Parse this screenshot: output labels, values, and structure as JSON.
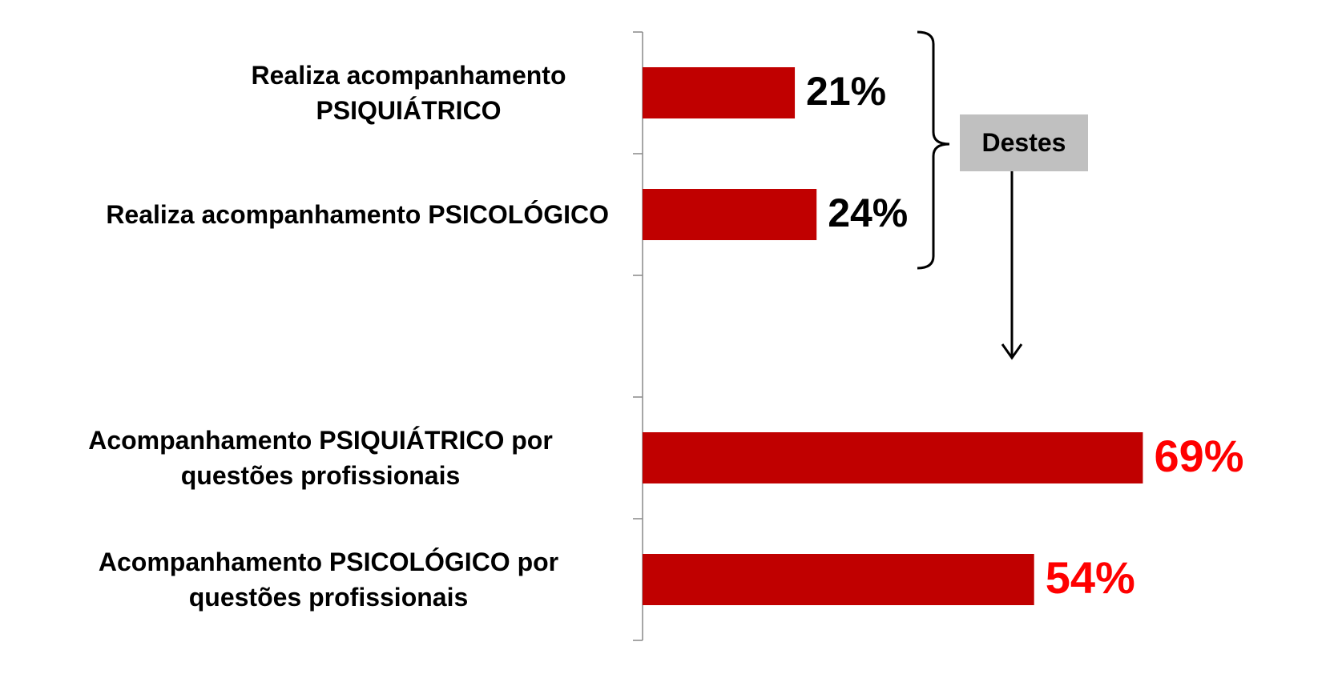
{
  "chart_data": {
    "type": "barh",
    "categories": [
      "Realiza acompanhamento PSIQUIÁTRICO",
      "Realiza acompanhamento PSICOLÓGICO",
      null,
      "Acompanhamento PSIQUIÁTRICO por questões profissionais",
      "Acompanhamento PSICOLÓGICO por questões profissionais"
    ],
    "values": [
      21,
      24,
      null,
      69,
      54
    ],
    "value_labels": [
      "21%",
      "24%",
      null,
      "69%",
      "54%"
    ],
    "label_colors": [
      "#000000",
      "#000000",
      null,
      "#ff0000",
      "#ff0000"
    ],
    "color": "#c00000",
    "xlim": [
      0,
      100
    ],
    "annotation": "Destes"
  }
}
